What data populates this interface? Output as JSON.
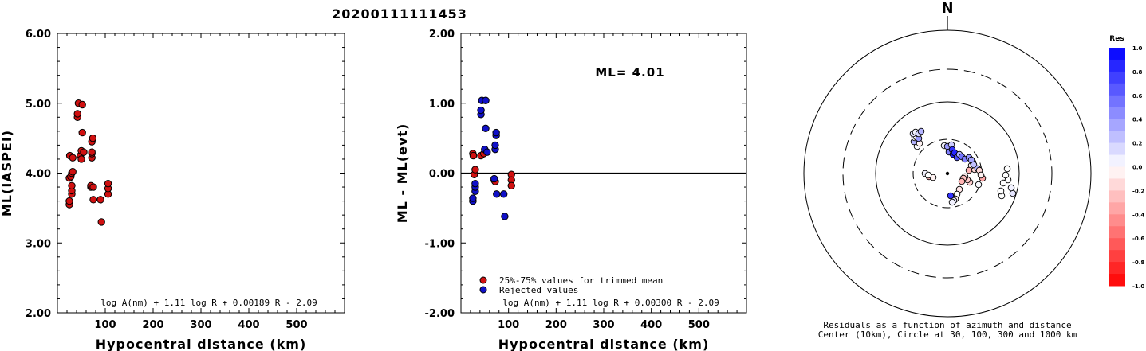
{
  "title": "20200111111453",
  "chart_data": [
    {
      "type": "scatter",
      "ylabel": "ML(IASPEI)",
      "xlabel": "Hypocentral distance (km)",
      "xlim": [
        0,
        600
      ],
      "ylim": [
        2.0,
        6.0
      ],
      "xticks": [
        "100",
        "200",
        "300",
        "400",
        "500"
      ],
      "yticks": [
        "2.00",
        "3.00",
        "4.00",
        "5.00",
        "6.00"
      ],
      "formula": "log A(nm) + 1.11 log R + 0.00189 R - 2.09",
      "color": "#d01010",
      "points": [
        [
          25,
          3.55
        ],
        [
          25,
          3.6
        ],
        [
          25,
          3.93
        ],
        [
          26,
          4.25
        ],
        [
          28,
          3.95
        ],
        [
          30,
          3.7
        ],
        [
          30,
          3.75
        ],
        [
          30,
          3.82
        ],
        [
          30,
          4.0
        ],
        [
          32,
          4.02
        ],
        [
          32,
          4.22
        ],
        [
          42,
          4.8
        ],
        [
          42,
          4.85
        ],
        [
          44,
          5.0
        ],
        [
          48,
          4.25
        ],
        [
          50,
          4.2
        ],
        [
          50,
          4.32
        ],
        [
          52,
          4.98
        ],
        [
          52,
          4.58
        ],
        [
          55,
          4.3
        ],
        [
          70,
          3.8
        ],
        [
          70,
          3.82
        ],
        [
          72,
          4.22
        ],
        [
          72,
          4.28
        ],
        [
          72,
          4.3
        ],
        [
          72,
          4.45
        ],
        [
          74,
          4.5
        ],
        [
          75,
          3.8
        ],
        [
          75,
          3.62
        ],
        [
          90,
          3.62
        ],
        [
          92,
          3.3
        ],
        [
          106,
          3.7
        ],
        [
          106,
          3.78
        ],
        [
          106,
          3.85
        ]
      ]
    },
    {
      "type": "scatter",
      "ylabel": "ML - ML(evt)",
      "xlabel": "Hypocentral distance (km)",
      "xlim": [
        0,
        600
      ],
      "ylim": [
        -2.0,
        2.0
      ],
      "xticks": [
        "100",
        "200",
        "300",
        "400",
        "500"
      ],
      "yticks": [
        "-2.00",
        "-1.00",
        "0.00",
        "1.00",
        "2.00"
      ],
      "ml_label": "ML= 4.01",
      "formula": "log A(nm) + 1.11 log R + 0.00300 R - 2.09",
      "legend": [
        {
          "label": "25%-75% values for trimmed mean",
          "color": "#d01010"
        },
        {
          "label": "Rejected values",
          "color": "#1010c8"
        }
      ],
      "points_trimmed": [
        [
          25,
          0.28
        ],
        [
          26,
          0.25
        ],
        [
          28,
          -0.02
        ],
        [
          30,
          0.05
        ],
        [
          42,
          0.25
        ],
        [
          48,
          0.28
        ],
        [
          70,
          -0.1
        ],
        [
          72,
          -0.12
        ],
        [
          106,
          -0.02
        ],
        [
          106,
          -0.1
        ],
        [
          106,
          -0.18
        ]
      ],
      "points_rejected": [
        [
          25,
          -0.4
        ],
        [
          25,
          -0.36
        ],
        [
          30,
          -0.26
        ],
        [
          30,
          -0.2
        ],
        [
          30,
          -0.15
        ],
        [
          42,
          0.84
        ],
        [
          42,
          0.9
        ],
        [
          44,
          1.04
        ],
        [
          50,
          0.34
        ],
        [
          52,
          1.04
        ],
        [
          52,
          0.64
        ],
        [
          55,
          0.3
        ],
        [
          70,
          -0.08
        ],
        [
          72,
          0.34
        ],
        [
          72,
          0.4
        ],
        [
          74,
          0.54
        ],
        [
          74,
          0.58
        ],
        [
          75,
          -0.3
        ],
        [
          90,
          -0.3
        ],
        [
          92,
          -0.62
        ]
      ]
    },
    {
      "type": "polar-scatter",
      "north_label": "N",
      "caption_line1": "Residuals as a function of azimuth and distance",
      "caption_line2": "Center (10km), Circle at 30, 100, 300 and 1000 km",
      "colorbar_title": "Res",
      "colorbar_labels": [
        "1.0",
        "0.8",
        "0.6",
        "0.4",
        "0.2",
        "0.0",
        "-0.2",
        "-0.4",
        "-0.6",
        "-0.8",
        "-1.0"
      ],
      "points": [
        [
          -38,
          34,
          0.02
        ],
        [
          -35,
          38,
          -0.05
        ],
        [
          -42,
          40,
          0.3
        ],
        [
          -41,
          45,
          0.02
        ],
        [
          -39,
          46,
          -0.02
        ],
        [
          -36,
          44,
          0.4
        ],
        [
          -43,
          50,
          0.1
        ],
        [
          -40,
          52,
          0.05
        ],
        [
          -36,
          50,
          0.15
        ],
        [
          -33,
          53,
          0.3
        ],
        [
          -28,
          0,
          0.05
        ],
        [
          -23,
          -4,
          -0.3
        ],
        [
          -18,
          -5,
          -0.05
        ],
        [
          -24,
          -2,
          0.0
        ],
        [
          82,
          -25,
          0.1
        ],
        [
          80,
          -18,
          0.05
        ],
        [
          76,
          -8,
          0.0
        ],
        [
          75,
          6,
          0.0
        ],
        [
          73,
          -2,
          0.0
        ],
        [
          68,
          -28,
          0.0
        ],
        [
          70,
          -12,
          0.0
        ],
        [
          67,
          -22,
          0.0
        ],
        [
          34,
          5,
          -0.15
        ],
        [
          30,
          10,
          -0.05
        ],
        [
          32,
          14,
          0.05
        ],
        [
          27,
          4,
          -0.3
        ],
        [
          28,
          -11,
          -0.2
        ],
        [
          25,
          -8,
          -0.2
        ],
        [
          22,
          -4,
          -0.1
        ],
        [
          20,
          -6,
          -0.25
        ],
        [
          18,
          -10,
          -0.3
        ],
        [
          15,
          -20,
          -0.1
        ],
        [
          12,
          -26,
          0.0
        ],
        [
          10,
          -32,
          -0.05
        ],
        [
          8,
          -34,
          0.1
        ],
        [
          6,
          -36,
          0.05
        ],
        [
          4,
          -28,
          0.8
        ],
        [
          -4,
          35,
          0.05
        ],
        [
          0,
          34,
          0.4
        ],
        [
          2,
          27,
          0.5
        ],
        [
          5,
          36,
          0.2
        ],
        [
          6,
          30,
          0.8
        ],
        [
          7,
          24,
          0.9
        ],
        [
          9,
          26,
          0.85
        ],
        [
          12,
          20,
          0.7
        ],
        [
          15,
          24,
          0.3
        ],
        [
          18,
          21,
          0.55
        ],
        [
          22,
          18,
          0.5
        ],
        [
          27,
          20,
          0.4
        ],
        [
          30,
          17,
          0.35
        ],
        [
          33,
          11,
          0.25
        ],
        [
          38,
          6,
          0.3
        ],
        [
          40,
          4,
          -0.15
        ],
        [
          44,
          -6,
          -0.35
        ],
        [
          42,
          -2,
          -0.05
        ],
        [
          39,
          -14,
          0.02
        ]
      ]
    }
  ]
}
